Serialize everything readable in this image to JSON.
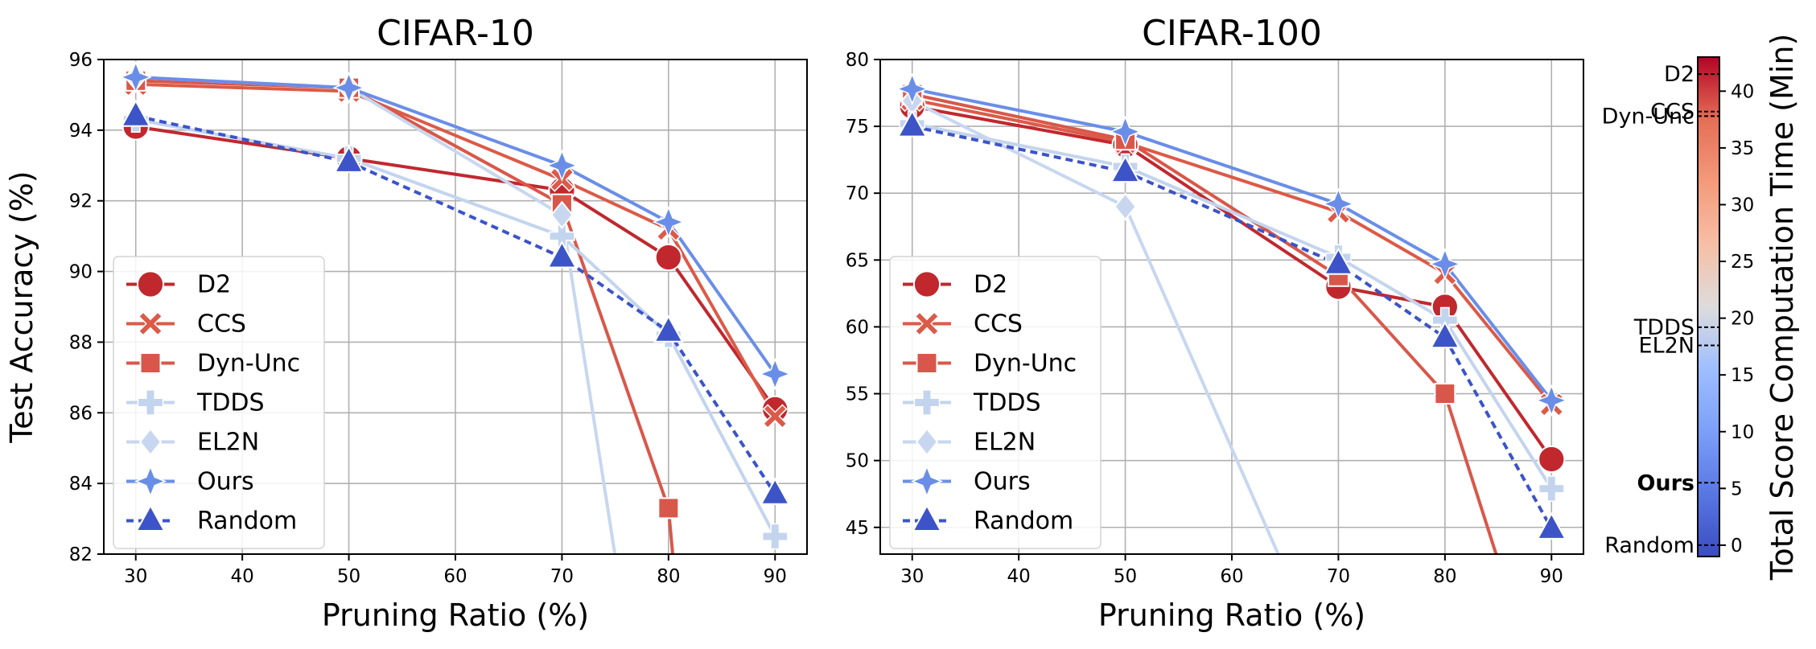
{
  "chart_data": [
    {
      "type": "line",
      "title": "CIFAR-10",
      "xlabel": "Pruning Ratio (%)",
      "ylabel": "Test Accuracy (%)",
      "xlim": [
        27,
        93
      ],
      "ylim": [
        82,
        96
      ],
      "xticks": [
        30,
        40,
        50,
        60,
        70,
        80,
        90
      ],
      "yticks": [
        82,
        84,
        86,
        88,
        90,
        92,
        94,
        96
      ],
      "legend_position": "lower-left",
      "grid": true,
      "series": [
        {
          "name": "D2",
          "marker": "circle",
          "color": "#c0282e",
          "dash": false,
          "x": [
            30,
            50,
            70,
            80,
            90
          ],
          "y": [
            94.1,
            93.2,
            92.3,
            90.4,
            86.1
          ]
        },
        {
          "name": "CCS",
          "marker": "x",
          "color": "#dc5a48",
          "dash": false,
          "x": [
            30,
            50,
            70,
            80,
            90
          ],
          "y": [
            95.3,
            95.1,
            92.6,
            91.2,
            85.9
          ]
        },
        {
          "name": "Dyn-Unc",
          "marker": "square",
          "color": "#d9574a",
          "dash": false,
          "x": [
            30,
            50,
            70,
            80,
            81
          ],
          "y": [
            95.4,
            95.2,
            91.9,
            83.3,
            80.0
          ]
        },
        {
          "name": "TDDS",
          "marker": "plus",
          "color": "#c3d4ee",
          "dash": false,
          "x": [
            30,
            50,
            70,
            80,
            90
          ],
          "y": [
            94.3,
            93.2,
            91.0,
            88.2,
            82.5
          ]
        },
        {
          "name": "EL2N",
          "marker": "diamond",
          "color": "#c8d7ef",
          "dash": false,
          "x": [
            30,
            50,
            70,
            76
          ],
          "y": [
            95.5,
            95.2,
            91.6,
            80.0
          ]
        },
        {
          "name": "Ours",
          "marker": "star4",
          "color": "#6a8ee8",
          "dash": false,
          "x": [
            30,
            50,
            70,
            80,
            90
          ],
          "y": [
            95.5,
            95.2,
            93.0,
            91.4,
            87.1
          ]
        },
        {
          "name": "Random",
          "marker": "triangle",
          "color": "#3c54c8",
          "dash": true,
          "x": [
            30,
            50,
            70,
            80,
            90
          ],
          "y": [
            94.4,
            93.1,
            90.4,
            88.3,
            83.7
          ]
        }
      ]
    },
    {
      "type": "line",
      "title": "CIFAR-100",
      "xlabel": "Pruning Ratio (%)",
      "ylabel": "",
      "xlim": [
        27,
        93
      ],
      "ylim": [
        43,
        80
      ],
      "xticks": [
        30,
        40,
        50,
        60,
        70,
        80,
        90
      ],
      "yticks": [
        45,
        50,
        55,
        60,
        65,
        70,
        75,
        80
      ],
      "legend_position": "lower-left",
      "grid": true,
      "series": [
        {
          "name": "D2",
          "marker": "circle",
          "color": "#c0282e",
          "dash": false,
          "x": [
            30,
            50,
            70,
            80,
            90
          ],
          "y": [
            76.5,
            73.6,
            63.0,
            61.5,
            50.1
          ]
        },
        {
          "name": "CCS",
          "marker": "x",
          "color": "#dc5a48",
          "dash": false,
          "x": [
            30,
            50,
            70,
            80,
            90
          ],
          "y": [
            77.0,
            73.8,
            68.6,
            64.0,
            54.2
          ]
        },
        {
          "name": "Dyn-Unc",
          "marker": "square",
          "color": "#d9574a",
          "dash": false,
          "x": [
            30,
            50,
            70,
            80,
            86
          ],
          "y": [
            77.4,
            74.0,
            63.8,
            55.0,
            40.0
          ]
        },
        {
          "name": "TDDS",
          "marker": "plus",
          "color": "#c3d4ee",
          "dash": false,
          "x": [
            30,
            50,
            70,
            80,
            90
          ],
          "y": [
            75.2,
            72.0,
            65.2,
            60.5,
            47.9
          ]
        },
        {
          "name": "EL2N",
          "marker": "diamond",
          "color": "#c8d7ef",
          "dash": false,
          "x": [
            30,
            50,
            66
          ],
          "y": [
            76.9,
            69.0,
            40.0
          ]
        },
        {
          "name": "Ours",
          "marker": "star4",
          "color": "#6a8ee8",
          "dash": false,
          "x": [
            30,
            50,
            70,
            80,
            90
          ],
          "y": [
            77.8,
            74.6,
            69.2,
            64.7,
            54.5
          ]
        },
        {
          "name": "Random",
          "marker": "triangle",
          "color": "#3c54c8",
          "dash": true,
          "x": [
            30,
            50,
            70,
            80,
            90
          ],
          "y": [
            75.0,
            71.6,
            64.7,
            59.2,
            44.9
          ]
        }
      ]
    },
    {
      "type": "colorbar",
      "label": "Total Score Computation Time (Min)",
      "range": [
        -1,
        43
      ],
      "ticks": [
        0,
        5,
        10,
        15,
        20,
        25,
        30,
        35,
        40
      ],
      "colormap": "coolwarm",
      "markers": [
        {
          "label": "D2",
          "value": 41.5,
          "bold": false
        },
        {
          "label": "CCS",
          "value": 38.2,
          "bold": false
        },
        {
          "label": "Dyn-Unc",
          "value": 37.8,
          "bold": false
        },
        {
          "label": "TDDS",
          "value": 19.2,
          "bold": false
        },
        {
          "label": "EL2N",
          "value": 17.6,
          "bold": false
        },
        {
          "label": "Ours",
          "value": 5.5,
          "bold": true
        },
        {
          "label": "Random",
          "value": 0.0,
          "bold": false
        }
      ]
    }
  ]
}
